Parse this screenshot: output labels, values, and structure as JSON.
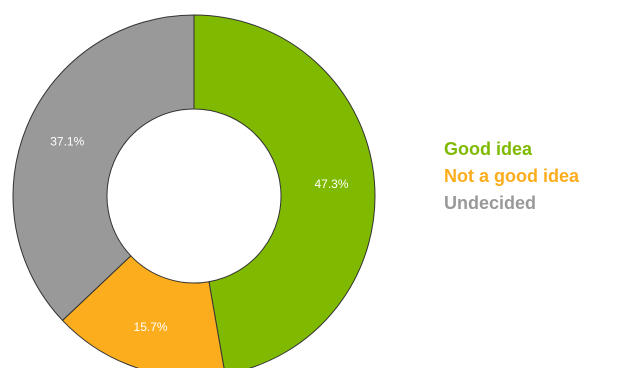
{
  "chart_data": {
    "type": "pie",
    "variant": "donut",
    "title": "",
    "legend_position": "right",
    "slices": [
      {
        "label": "Good idea",
        "value": 47.3,
        "display": "47.3%",
        "color": "#7fba00"
      },
      {
        "label": "Not a good idea",
        "value": 15.7,
        "display": "15.7%",
        "color": "#fbad1d"
      },
      {
        "label": "Undecided",
        "value": 37.1,
        "display": "37.1%",
        "color": "#999999"
      }
    ]
  }
}
